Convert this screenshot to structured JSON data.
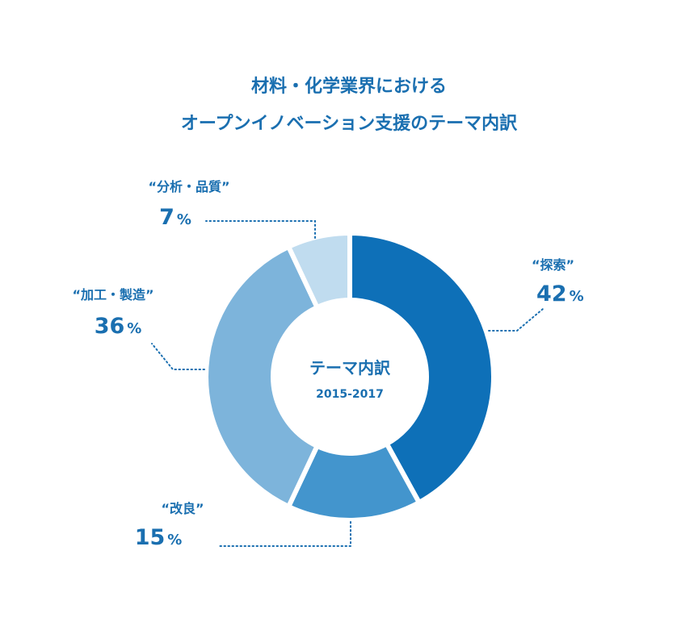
{
  "chart_data": {
    "type": "pie",
    "title_lines": [
      "材料・化学業界における",
      "オープンイノベーション支援のテーマ内訳"
    ],
    "center_title": "テーマ内訳",
    "center_period": "2015-2017",
    "percent_sign": "%",
    "slices": [
      {
        "label": "“探索”",
        "value": 42,
        "color": "#0e70b8"
      },
      {
        "label": "“改良”",
        "value": 15,
        "color": "#4395cd"
      },
      {
        "label": "“加工・製造”",
        "value": 36,
        "color": "#7db4db"
      },
      {
        "label": "“分析・品質”",
        "value": 7,
        "color": "#c0dcef"
      }
    ]
  }
}
